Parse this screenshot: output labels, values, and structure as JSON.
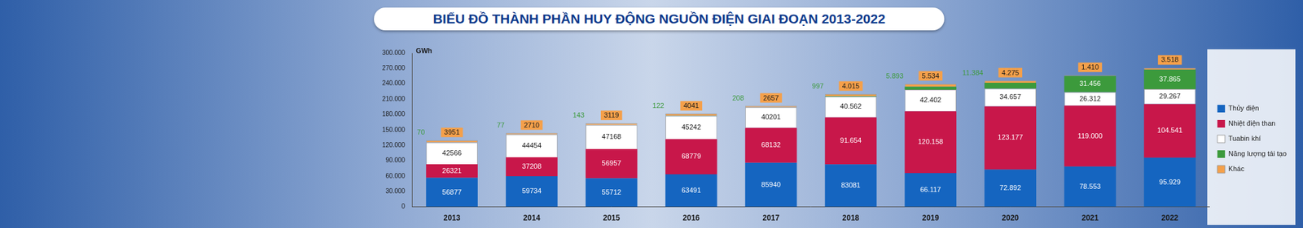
{
  "chart_data": {
    "type": "bar",
    "title": "BIỂU ĐỒ THÀNH PHẦN HUY ĐỘNG NGUỒN ĐIỆN GIAI ĐOẠN 2013-2022",
    "ylabel": "GWh",
    "categories": [
      "2013",
      "2014",
      "2015",
      "2016",
      "2017",
      "2018",
      "2019",
      "2020",
      "2021",
      "2022"
    ],
    "series": [
      {
        "name": "Thủy điện",
        "color": "#1565c0",
        "values": [
          56877,
          59734,
          55712,
          63491,
          85940,
          83081,
          66117,
          72892,
          78553,
          95929
        ],
        "value_labels": [
          "56877",
          "59734",
          "55712",
          "63491",
          "85940",
          "83081",
          "66.117",
          "72.892",
          "78.553",
          "95.929"
        ]
      },
      {
        "name": "Nhiệt điện than",
        "color": "#c8174a",
        "values": [
          26321,
          37208,
          56957,
          68779,
          68132,
          91654,
          120158,
          123177,
          119000,
          104541
        ],
        "value_labels": [
          "26321",
          "37208",
          "56957",
          "68779",
          "68132",
          "91.654",
          "120.158",
          "123.177",
          "119.000",
          "104.541"
        ]
      },
      {
        "name": "Tuabin khí",
        "color": "#ffffff",
        "values": [
          42566,
          44454,
          47168,
          45242,
          40201,
          40562,
          42402,
          34657,
          26312,
          29267
        ],
        "value_labels": [
          "42566",
          "44454",
          "47168",
          "45242",
          "40201",
          "40.562",
          "42.402",
          "34.657",
          "26.312",
          "29.267"
        ]
      },
      {
        "name": "Năng lượng tái tạo",
        "color": "#3c9a3c",
        "values": [
          70,
          77,
          143,
          122,
          208,
          997,
          5893,
          11384,
          31456,
          37865
        ],
        "value_labels": [
          "70",
          "77",
          "143",
          "122",
          "208",
          "997",
          "5.893",
          "11.384",
          "31.456",
          "37.865"
        ]
      },
      {
        "name": "Khác",
        "color": "#f5a04a",
        "values": [
          3951,
          2710,
          3119,
          4041,
          2657,
          4015,
          5534,
          4275,
          1410,
          3518
        ],
        "value_labels": [
          "3951",
          "2710",
          "3119",
          "4041",
          "2657",
          "4.015",
          "5.534",
          "4.275",
          "1.410",
          "3.518"
        ]
      }
    ],
    "ylim": [
      0,
      300000
    ],
    "yticks": [
      0,
      {
        "value": 30000,
        "label": "30.000"
      },
      {
        "value": 60000,
        "label": "60.000"
      },
      {
        "value": 90000,
        "label": "90.000"
      },
      {
        "value": 120000,
        "label": "120.000"
      },
      {
        "value": 150000,
        "label": "150.000"
      },
      {
        "value": 180000,
        "label": "180.000"
      },
      {
        "value": 210000,
        "label": "210.000"
      },
      {
        "value": 240000,
        "label": "240.000"
      },
      {
        "value": 270000,
        "label": "270.000"
      },
      {
        "value": 300000,
        "label": "300.000"
      }
    ],
    "stacked": true,
    "data_labels": true,
    "grid": false,
    "legend": "right"
  }
}
